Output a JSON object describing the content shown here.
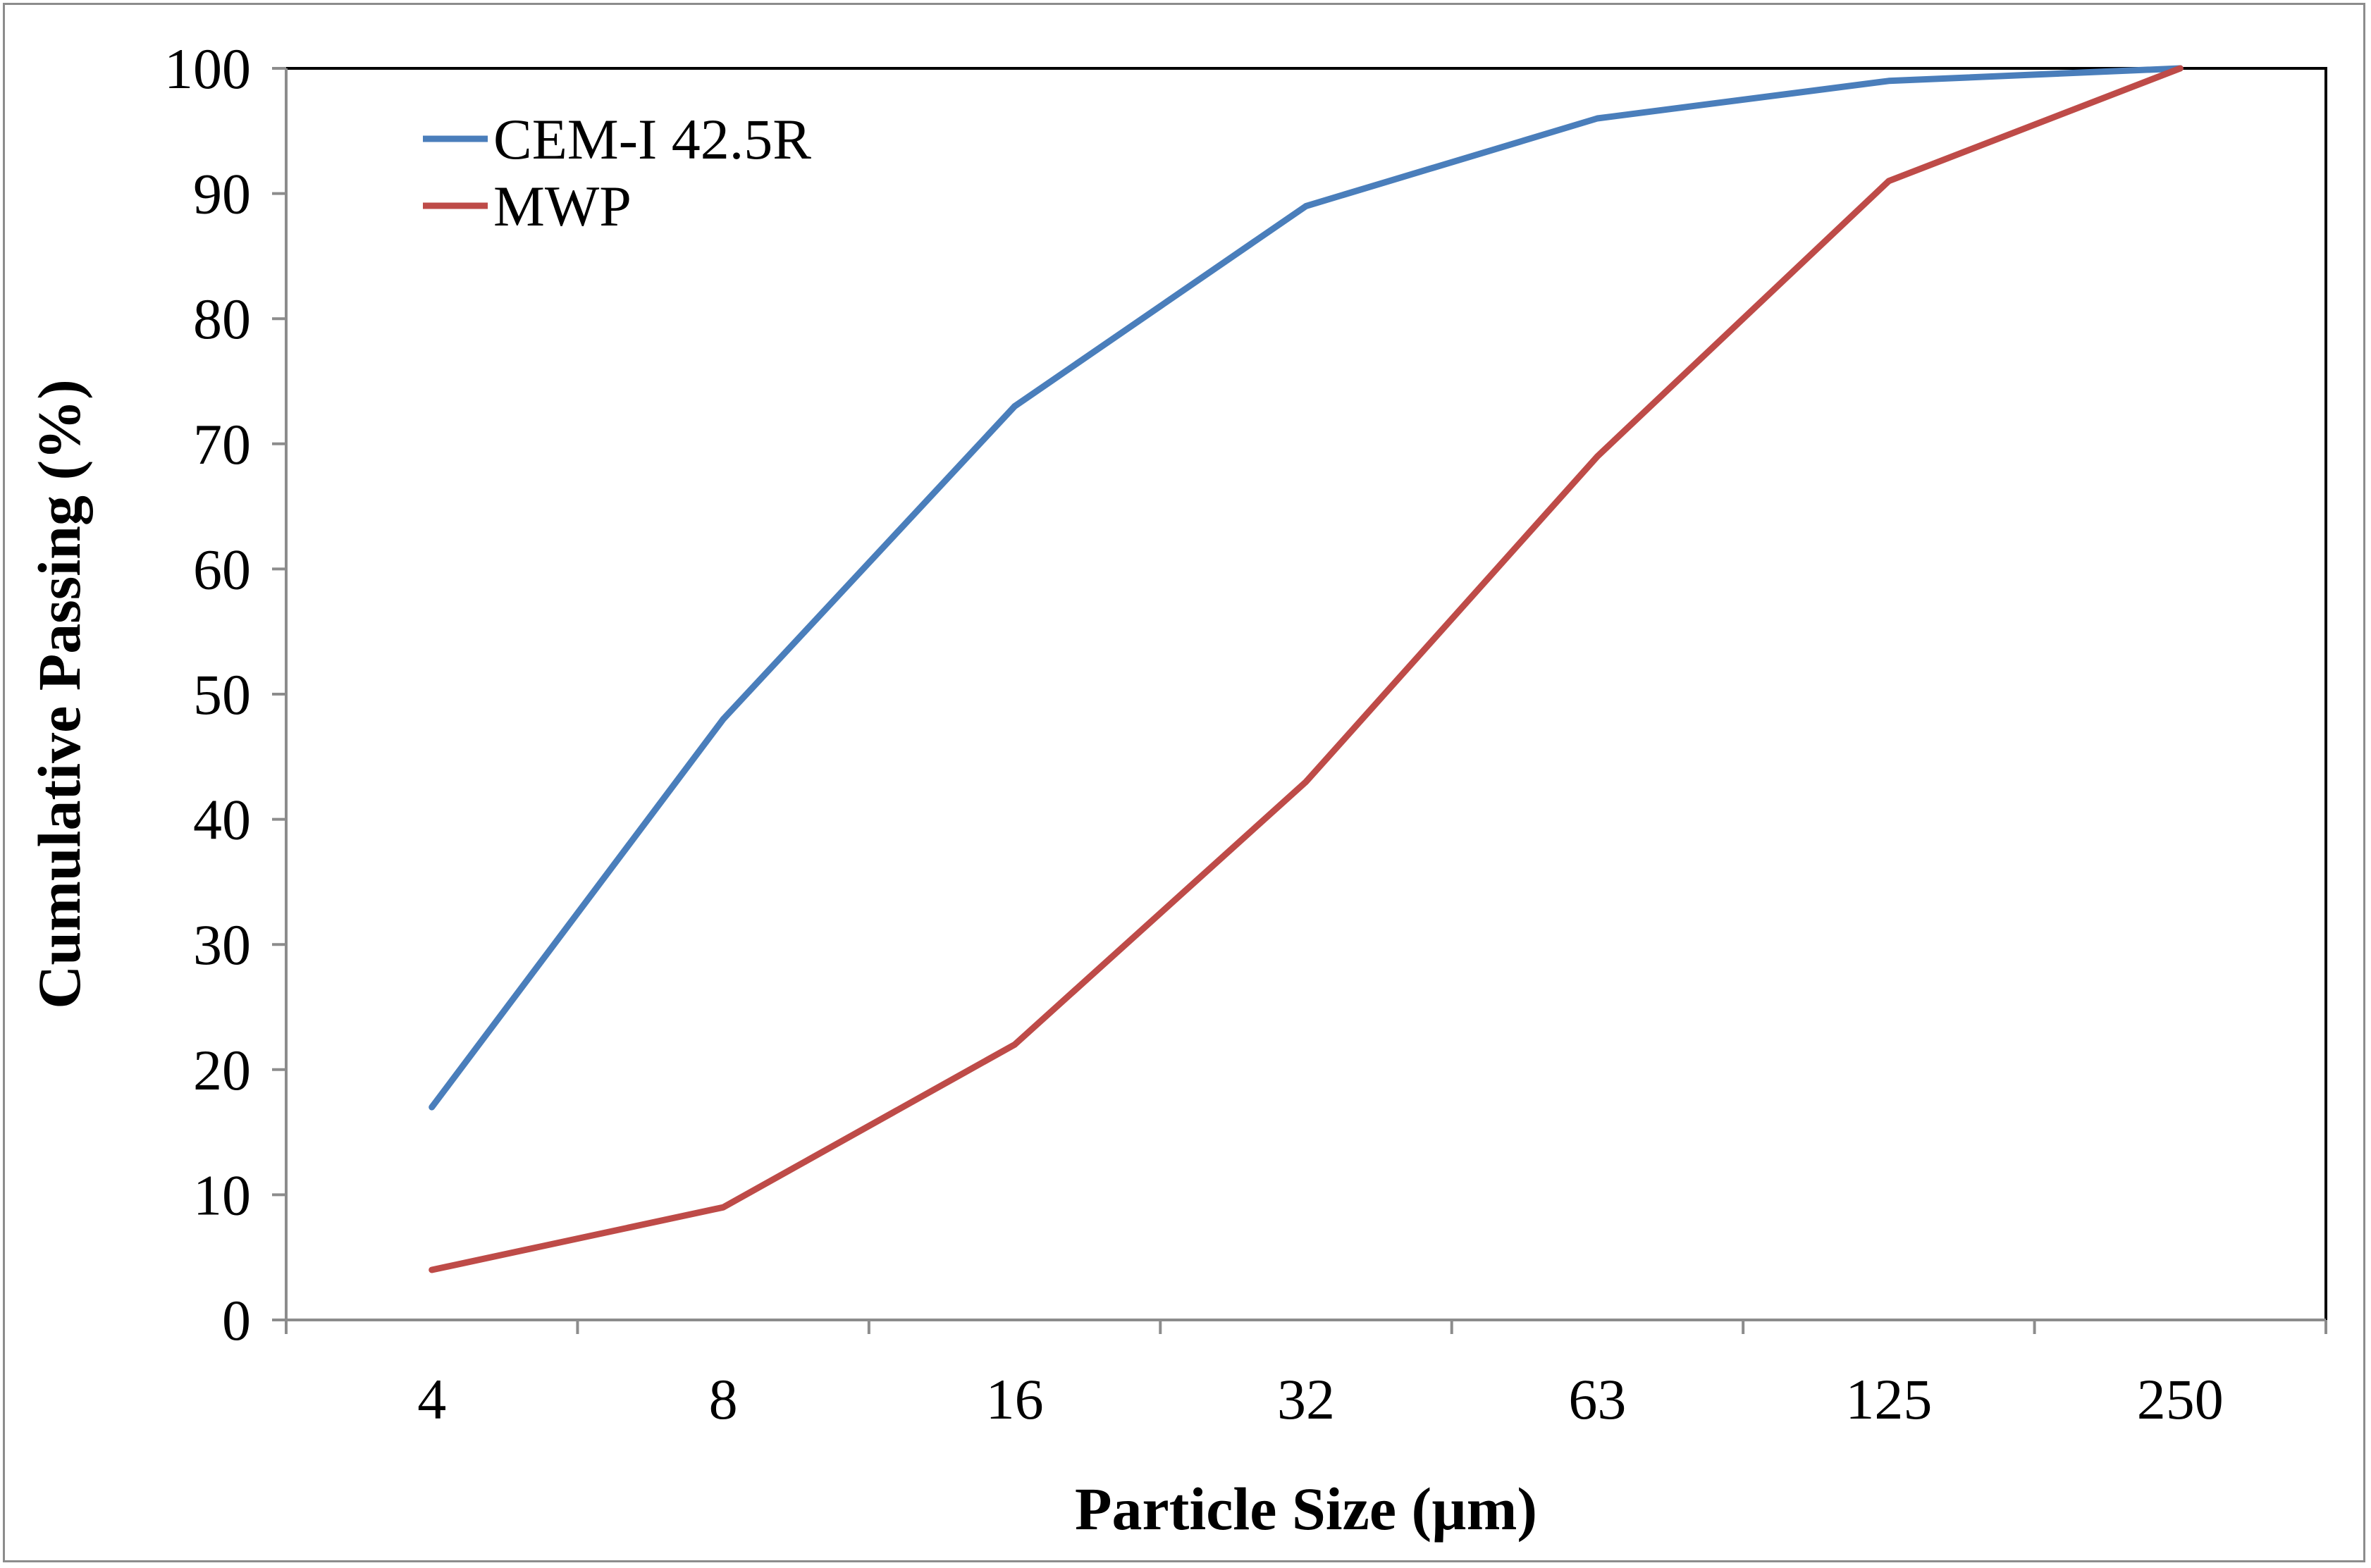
{
  "chart_data": {
    "type": "line",
    "title": "",
    "xlabel": "Particle Size (µm)",
    "ylabel": "Cumulative Passing (%)",
    "categories": [
      "4",
      "8",
      "16",
      "32",
      "63",
      "125",
      "250"
    ],
    "ylim": [
      0,
      100
    ],
    "yticks": [
      "0",
      "10",
      "20",
      "30",
      "40",
      "50",
      "60",
      "70",
      "80",
      "90",
      "100"
    ],
    "grid": false,
    "legend_position": "top-left",
    "series": [
      {
        "name": "CEM-I 42.5R",
        "color": "#4a7ebb",
        "values": [
          17,
          48,
          73,
          89,
          96,
          99,
          100
        ]
      },
      {
        "name": "MWP",
        "color": "#be4b48",
        "values": [
          4,
          9,
          22,
          43,
          69,
          91,
          100
        ]
      }
    ]
  }
}
